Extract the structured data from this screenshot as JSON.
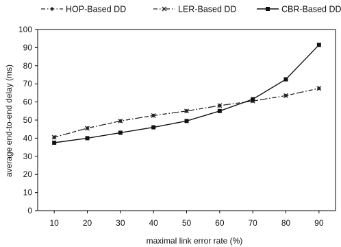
{
  "chart_data": {
    "type": "line",
    "title": "",
    "xlabel": "maximal link error rate (%)",
    "ylabel": "average end-to-end delay (ms)",
    "x": [
      10,
      20,
      30,
      40,
      50,
      60,
      70,
      80,
      90
    ],
    "ylim": [
      0,
      100
    ],
    "yticks": [
      0,
      10,
      20,
      30,
      40,
      50,
      60,
      70,
      80,
      90,
      100
    ],
    "grid": false,
    "legend_position": "top",
    "series": [
      {
        "name": "HOP-Based DD",
        "values": [
          40.5,
          45.5,
          49.5,
          52.5,
          55,
          58,
          60.5,
          63.5,
          67.5
        ],
        "style": "dash-dot",
        "marker": "diamond",
        "color": "#222222"
      },
      {
        "name": "LER-Based DD",
        "values": [
          40.5,
          45.5,
          49.5,
          52.5,
          55,
          58,
          60.5,
          63.5,
          67.5
        ],
        "style": "dash-dot-dot",
        "marker": "x",
        "color": "#222222"
      },
      {
        "name": "CBR-Based DD",
        "values": [
          37.5,
          40,
          43,
          46,
          49.5,
          55,
          61.5,
          72.5,
          91.5
        ],
        "style": "solid",
        "marker": "square",
        "color": "#111111"
      }
    ]
  }
}
